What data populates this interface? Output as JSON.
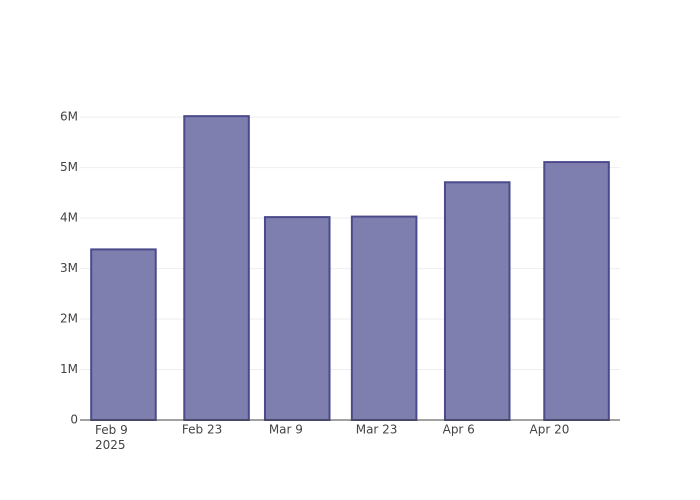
{
  "chart_data": {
    "type": "bar",
    "x": [
      "2025-02-11",
      "2025-02-26",
      "2025-03-11",
      "2025-03-25",
      "2025-04-09",
      "2025-04-25"
    ],
    "values": [
      3380000,
      6020000,
      4020000,
      4030000,
      4710000,
      5110000
    ],
    "color": "#7e7eaf",
    "line_color": "#4b4b8c",
    "xlim": [
      "2025-02-04",
      "2025-05-02"
    ],
    "xticks": [
      {
        "value": "2025-02-09",
        "label": "Feb 9\n2025"
      },
      {
        "value": "2025-02-23",
        "label": "Feb 23"
      },
      {
        "value": "2025-03-09",
        "label": "Mar 9"
      },
      {
        "value": "2025-03-23",
        "label": "Mar 23"
      },
      {
        "value": "2025-04-06",
        "label": "Apr 6"
      },
      {
        "value": "2025-04-20",
        "label": "Apr 20"
      }
    ],
    "ylim": [
      0,
      6340000
    ],
    "yticks": [
      0,
      {
        "value": 1000000,
        "label": "1M"
      },
      {
        "value": 2000000,
        "label": "2M"
      },
      {
        "value": 3000000,
        "label": "3M"
      },
      {
        "value": 4000000,
        "label": "4M"
      },
      {
        "value": 5000000,
        "label": "5M"
      },
      {
        "value": 6000000,
        "label": "6M"
      }
    ],
    "grid": true
  }
}
